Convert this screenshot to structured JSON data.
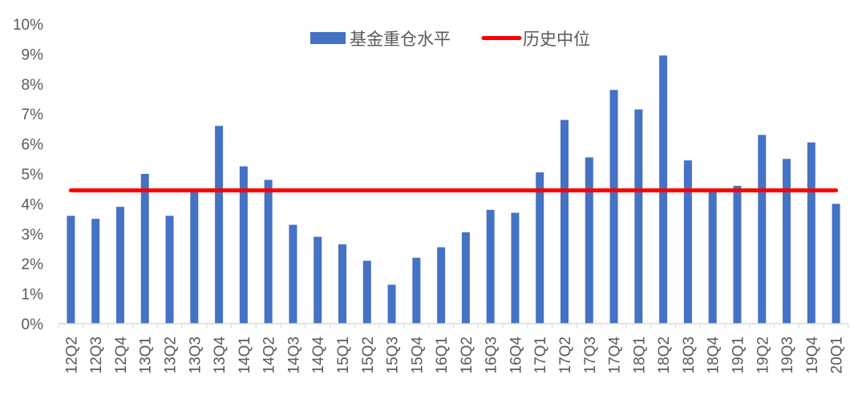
{
  "chart_data": {
    "type": "bar",
    "categories": [
      "12Q2",
      "12Q3",
      "12Q4",
      "13Q1",
      "13Q2",
      "13Q3",
      "13Q4",
      "14Q1",
      "14Q2",
      "14Q3",
      "14Q4",
      "15Q1",
      "15Q2",
      "15Q3",
      "15Q4",
      "16Q1",
      "16Q2",
      "16Q3",
      "16Q4",
      "17Q1",
      "17Q2",
      "17Q3",
      "17Q4",
      "18Q1",
      "18Q2",
      "18Q3",
      "18Q4",
      "19Q1",
      "19Q2",
      "19Q3",
      "19Q4",
      "20Q1"
    ],
    "series": [
      {
        "name": "基金重仓水平",
        "type": "bar",
        "color": "#4472C4",
        "values": [
          3.6,
          3.5,
          3.9,
          5.0,
          3.6,
          4.4,
          6.6,
          5.25,
          4.8,
          3.3,
          2.9,
          2.65,
          2.1,
          1.3,
          2.2,
          2.55,
          3.05,
          3.8,
          3.7,
          5.05,
          6.8,
          5.55,
          7.8,
          7.15,
          8.95,
          5.45,
          4.4,
          4.6,
          6.3,
          5.5,
          6.05,
          4.0
        ]
      },
      {
        "name": "历史中位",
        "type": "line",
        "color": "#FF0000",
        "value": 4.45
      }
    ],
    "y_ticks": [
      "0%",
      "1%",
      "2%",
      "3%",
      "4%",
      "5%",
      "6%",
      "7%",
      "8%",
      "9%",
      "10%"
    ],
    "ylim": [
      0,
      10
    ],
    "y_unit": "%",
    "grid": false,
    "legend_position": "top-center",
    "title": "",
    "xlabel": "",
    "ylabel": ""
  }
}
